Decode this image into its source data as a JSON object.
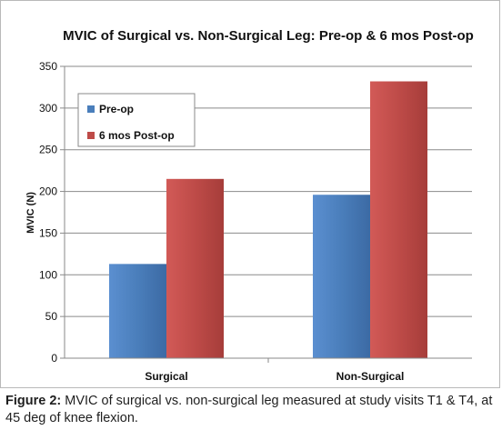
{
  "chart_data": {
    "type": "bar",
    "title": "MVIC of Surgical vs. Non-Surgical Leg: Pre-op & 6 mos Post-op",
    "ylabel": "MVIC (N)",
    "xlabel": "",
    "categories": [
      "Surgical",
      "Non-Surgical"
    ],
    "series": [
      {
        "name": "Pre-op",
        "values": [
          113,
          196
        ],
        "color": "#4a7ebb"
      },
      {
        "name": "6 mos Post-op",
        "values": [
          215,
          332
        ],
        "color": "#be4b48"
      }
    ],
    "ylim": [
      0,
      350
    ],
    "yticks": [
      0,
      50,
      100,
      150,
      200,
      250,
      300,
      350
    ],
    "grid": true,
    "legend_position": "top-left"
  },
  "caption": {
    "label": "Figure 2:",
    "text": " MVIC of surgical vs. non-surgical leg measured at study visits T1 & T4, at 45 deg of knee flexion."
  }
}
